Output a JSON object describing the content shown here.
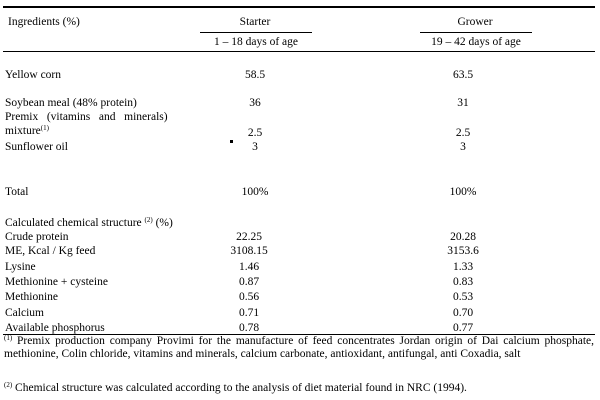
{
  "header": {
    "ingredients": "Ingredients (%)",
    "starter": "Starter",
    "starter_age": "1 – 18 days of age",
    "grower": "Grower",
    "grower_age": "19 – 42 days of age"
  },
  "rows": [
    {
      "label": "Yellow corn",
      "starter": "58.5",
      "grower": "63.5"
    },
    {
      "label": "Soybean meal (48% protein)",
      "starter": "36",
      "grower": "31"
    },
    {
      "label_line1": "Premix   (vitamins   and   minerals)",
      "label_line2": "mixture",
      "label_sup": "(1)",
      "starter": "2.5",
      "grower": "2.5"
    },
    {
      "label": "Sunflower oil",
      "starter": "3",
      "grower": "3"
    }
  ],
  "total": {
    "label": "Total",
    "starter": "100%",
    "grower": "100%"
  },
  "calc_heading": {
    "text": "Calculated chemical structure",
    "sup": "(2)",
    "suffix": "(%)"
  },
  "calc_rows": [
    {
      "label": "Crude protein",
      "starter": "22.25",
      "grower": "20.28"
    },
    {
      "label": "ME, Kcal / Kg feed",
      "starter": "3108.15",
      "grower": "3153.6"
    },
    {
      "label": "Lysine",
      "starter": "1.46",
      "grower": "1.33"
    },
    {
      "label": "Methionine + cysteine",
      "starter": "0.87",
      "grower": "0.83"
    },
    {
      "label": "Methionine",
      "starter": "0.56",
      "grower": "0.53"
    },
    {
      "label": "Calcium",
      "starter": "0.71",
      "grower": "0.70"
    },
    {
      "label": "Available phosphorus",
      "starter": "0.78",
      "grower": "0.77"
    }
  ],
  "footnotes": [
    {
      "mark": "(1)",
      "text": " Premix production company Provimi for the manufacture of feed concentrates Jordan origin of Dai calcium phosphate, methionine, Colin chloride, vitamins and minerals, calcium carbonate, antioxidant, antifungal, anti Coxadia, salt"
    },
    {
      "mark": "(2)",
      "text": " Chemical structure was calculated according to the analysis of diet material found in NRC (1994)."
    }
  ]
}
